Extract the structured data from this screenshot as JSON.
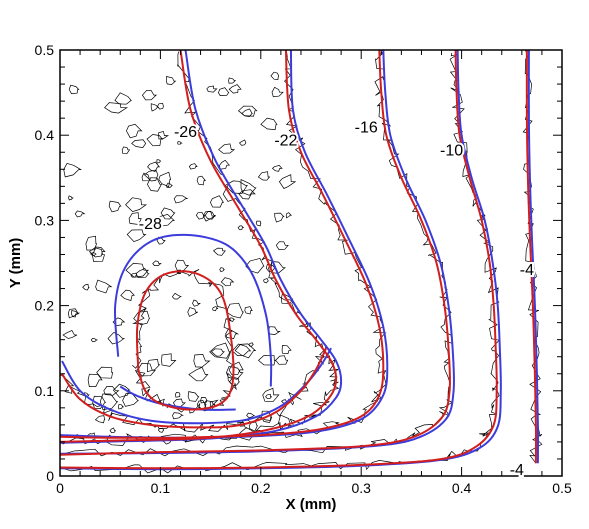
{
  "chart_data": {
    "type": "contour",
    "xlabel": "X (mm)",
    "ylabel": "Y (mm)",
    "xlim": [
      0,
      0.5
    ],
    "ylim": [
      0,
      0.5
    ],
    "xticks": [
      "0",
      "0.1",
      "0.2",
      "0.3",
      "0.4",
      "0.5"
    ],
    "yticks": [
      "0",
      "0.1",
      "0.2",
      "0.3",
      "0.4",
      "0.5"
    ],
    "grid": false,
    "legend": "none",
    "colors": {
      "red": "#d21e1e",
      "blue": "#3c3cdc",
      "noisy": "#000000"
    },
    "contour_labels": [
      {
        "text": "-26",
        "x": 0.125,
        "y": 0.405
      },
      {
        "text": "-22",
        "x": 0.225,
        "y": 0.395
      },
      {
        "text": "-16",
        "x": 0.305,
        "y": 0.41
      },
      {
        "text": "-10",
        "x": 0.39,
        "y": 0.383
      },
      {
        "text": "-28",
        "x": 0.09,
        "y": 0.297
      },
      {
        "text": "-4",
        "x": 0.465,
        "y": 0.243
      },
      {
        "text": "-4",
        "x": 0.455,
        "y": 0.008
      }
    ],
    "series": [
      {
        "color": "red",
        "points": [
          [
            0.078,
            0.125
          ],
          [
            0.077,
            0.175
          ],
          [
            0.085,
            0.215
          ],
          [
            0.105,
            0.237
          ],
          [
            0.135,
            0.238
          ],
          [
            0.16,
            0.215
          ],
          [
            0.17,
            0.165
          ],
          [
            0.172,
            0.11
          ],
          [
            0.16,
            0.085
          ],
          [
            0.13,
            0.078
          ],
          [
            0.1,
            0.085
          ],
          [
            0.085,
            0.1
          ],
          [
            0.078,
            0.125
          ]
        ]
      },
      {
        "color": "blue",
        "points": [
          [
            0.058,
            0.14
          ],
          [
            0.055,
            0.2
          ],
          [
            0.065,
            0.245
          ],
          [
            0.09,
            0.275
          ],
          [
            0.125,
            0.283
          ],
          [
            0.165,
            0.272
          ],
          [
            0.19,
            0.24
          ],
          [
            0.205,
            0.19
          ],
          [
            0.21,
            0.14
          ],
          [
            0.21,
            0.105
          ]
        ]
      },
      {
        "color": "blue",
        "points": [
          [
            0.06,
            0.105
          ],
          [
            0.075,
            0.095
          ],
          [
            0.1,
            0.085
          ],
          [
            0.14,
            0.078
          ],
          [
            0.175,
            0.078
          ]
        ]
      },
      {
        "color": "red",
        "points": [
          [
            0.002,
            0.12
          ],
          [
            0.02,
            0.09
          ],
          [
            0.05,
            0.07
          ],
          [
            0.09,
            0.06
          ],
          [
            0.14,
            0.057
          ],
          [
            0.18,
            0.06
          ],
          [
            0.215,
            0.075
          ],
          [
            0.24,
            0.1
          ],
          [
            0.255,
            0.125
          ],
          [
            0.265,
            0.15
          ]
        ]
      },
      {
        "color": "blue",
        "points": [
          [
            0.002,
            0.135
          ],
          [
            0.02,
            0.1
          ],
          [
            0.05,
            0.078
          ],
          [
            0.09,
            0.065
          ],
          [
            0.14,
            0.062
          ],
          [
            0.185,
            0.066
          ],
          [
            0.22,
            0.082
          ],
          [
            0.245,
            0.108
          ],
          [
            0.26,
            0.13
          ],
          [
            0.27,
            0.15
          ]
        ]
      },
      {
        "color": "red",
        "points": [
          [
            0.12,
            0.5
          ],
          [
            0.13,
            0.43
          ],
          [
            0.15,
            0.37
          ],
          [
            0.18,
            0.31
          ],
          [
            0.2,
            0.27
          ],
          [
            0.215,
            0.23
          ],
          [
            0.235,
            0.19
          ],
          [
            0.255,
            0.16
          ],
          [
            0.27,
            0.135
          ],
          [
            0.275,
            0.115
          ],
          [
            0.27,
            0.095
          ],
          [
            0.25,
            0.072
          ],
          [
            0.21,
            0.055
          ],
          [
            0.15,
            0.045
          ],
          [
            0.07,
            0.042
          ],
          [
            0,
            0.04
          ]
        ]
      },
      {
        "color": "blue",
        "points": [
          [
            0.125,
            0.5
          ],
          [
            0.135,
            0.43
          ],
          [
            0.155,
            0.37
          ],
          [
            0.185,
            0.31
          ],
          [
            0.205,
            0.27
          ],
          [
            0.22,
            0.23
          ],
          [
            0.24,
            0.19
          ],
          [
            0.26,
            0.16
          ],
          [
            0.275,
            0.135
          ],
          [
            0.28,
            0.112
          ],
          [
            0.275,
            0.092
          ],
          [
            0.255,
            0.07
          ],
          [
            0.215,
            0.053
          ],
          [
            0.15,
            0.044
          ],
          [
            0.07,
            0.041
          ],
          [
            0,
            0.039
          ]
        ]
      },
      {
        "color": "red",
        "points": [
          [
            0.225,
            0.5
          ],
          [
            0.228,
            0.43
          ],
          [
            0.24,
            0.38
          ],
          [
            0.262,
            0.33
          ],
          [
            0.285,
            0.275
          ],
          [
            0.305,
            0.225
          ],
          [
            0.318,
            0.175
          ],
          [
            0.322,
            0.13
          ],
          [
            0.318,
            0.095
          ],
          [
            0.3,
            0.07
          ],
          [
            0.26,
            0.055
          ],
          [
            0.2,
            0.048
          ],
          [
            0.12,
            0.045
          ],
          [
            0.05,
            0.045
          ],
          [
            0,
            0.046
          ]
        ]
      },
      {
        "color": "blue",
        "points": [
          [
            0.23,
            0.5
          ],
          [
            0.232,
            0.43
          ],
          [
            0.244,
            0.38
          ],
          [
            0.266,
            0.33
          ],
          [
            0.289,
            0.275
          ],
          [
            0.309,
            0.225
          ],
          [
            0.322,
            0.175
          ],
          [
            0.326,
            0.13
          ],
          [
            0.322,
            0.095
          ],
          [
            0.302,
            0.068
          ],
          [
            0.26,
            0.053
          ],
          [
            0.2,
            0.047
          ],
          [
            0.12,
            0.045
          ],
          [
            0.05,
            0.046
          ],
          [
            0,
            0.048
          ]
        ]
      },
      {
        "color": "red",
        "points": [
          [
            0.318,
            0.5
          ],
          [
            0.32,
            0.45
          ],
          [
            0.325,
            0.4
          ],
          [
            0.34,
            0.35
          ],
          [
            0.36,
            0.3
          ],
          [
            0.375,
            0.25
          ],
          [
            0.383,
            0.2
          ],
          [
            0.387,
            0.15
          ],
          [
            0.388,
            0.1
          ],
          [
            0.38,
            0.068
          ],
          [
            0.35,
            0.045
          ],
          [
            0.3,
            0.035
          ],
          [
            0.2,
            0.03
          ],
          [
            0.1,
            0.028
          ],
          [
            0,
            0.025
          ]
        ]
      },
      {
        "color": "blue",
        "points": [
          [
            0.322,
            0.5
          ],
          [
            0.324,
            0.45
          ],
          [
            0.329,
            0.4
          ],
          [
            0.344,
            0.35
          ],
          [
            0.364,
            0.3
          ],
          [
            0.379,
            0.25
          ],
          [
            0.387,
            0.2
          ],
          [
            0.391,
            0.15
          ],
          [
            0.392,
            0.1
          ],
          [
            0.384,
            0.066
          ],
          [
            0.352,
            0.043
          ],
          [
            0.3,
            0.034
          ],
          [
            0.2,
            0.029
          ],
          [
            0.1,
            0.027
          ],
          [
            0,
            0.026
          ]
        ]
      },
      {
        "color": "red",
        "points": [
          [
            0.394,
            0.5
          ],
          [
            0.395,
            0.45
          ],
          [
            0.398,
            0.4
          ],
          [
            0.408,
            0.35
          ],
          [
            0.42,
            0.3
          ],
          [
            0.428,
            0.25
          ],
          [
            0.432,
            0.2
          ],
          [
            0.434,
            0.15
          ],
          [
            0.435,
            0.1
          ],
          [
            0.432,
            0.06
          ],
          [
            0.415,
            0.035
          ],
          [
            0.38,
            0.02
          ],
          [
            0.3,
            0.013
          ],
          [
            0.2,
            0.01
          ],
          [
            0.1,
            0.009
          ],
          [
            0,
            0.01
          ]
        ]
      },
      {
        "color": "blue",
        "points": [
          [
            0.396,
            0.5
          ],
          [
            0.397,
            0.45
          ],
          [
            0.4,
            0.4
          ],
          [
            0.41,
            0.35
          ],
          [
            0.423,
            0.3
          ],
          [
            0.431,
            0.25
          ],
          [
            0.436,
            0.2
          ],
          [
            0.438,
            0.15
          ],
          [
            0.439,
            0.1
          ],
          [
            0.436,
            0.058
          ],
          [
            0.418,
            0.033
          ],
          [
            0.38,
            0.019
          ],
          [
            0.3,
            0.012
          ],
          [
            0.2,
            0.009
          ],
          [
            0.1,
            0.008
          ],
          [
            0,
            0.009
          ]
        ]
      },
      {
        "color": "red",
        "points": [
          [
            0.465,
            0.5
          ],
          [
            0.465,
            0.42
          ],
          [
            0.466,
            0.35
          ],
          [
            0.468,
            0.28
          ],
          [
            0.471,
            0.2
          ],
          [
            0.473,
            0.12
          ],
          [
            0.474,
            0.06
          ],
          [
            0.474,
            0.015
          ]
        ]
      },
      {
        "color": "blue",
        "points": [
          [
            0.467,
            0.5
          ],
          [
            0.467,
            0.42
          ],
          [
            0.468,
            0.35
          ],
          [
            0.47,
            0.28
          ],
          [
            0.473,
            0.2
          ],
          [
            0.475,
            0.12
          ],
          [
            0.476,
            0.06
          ],
          [
            0.476,
            0.015
          ]
        ]
      }
    ]
  }
}
